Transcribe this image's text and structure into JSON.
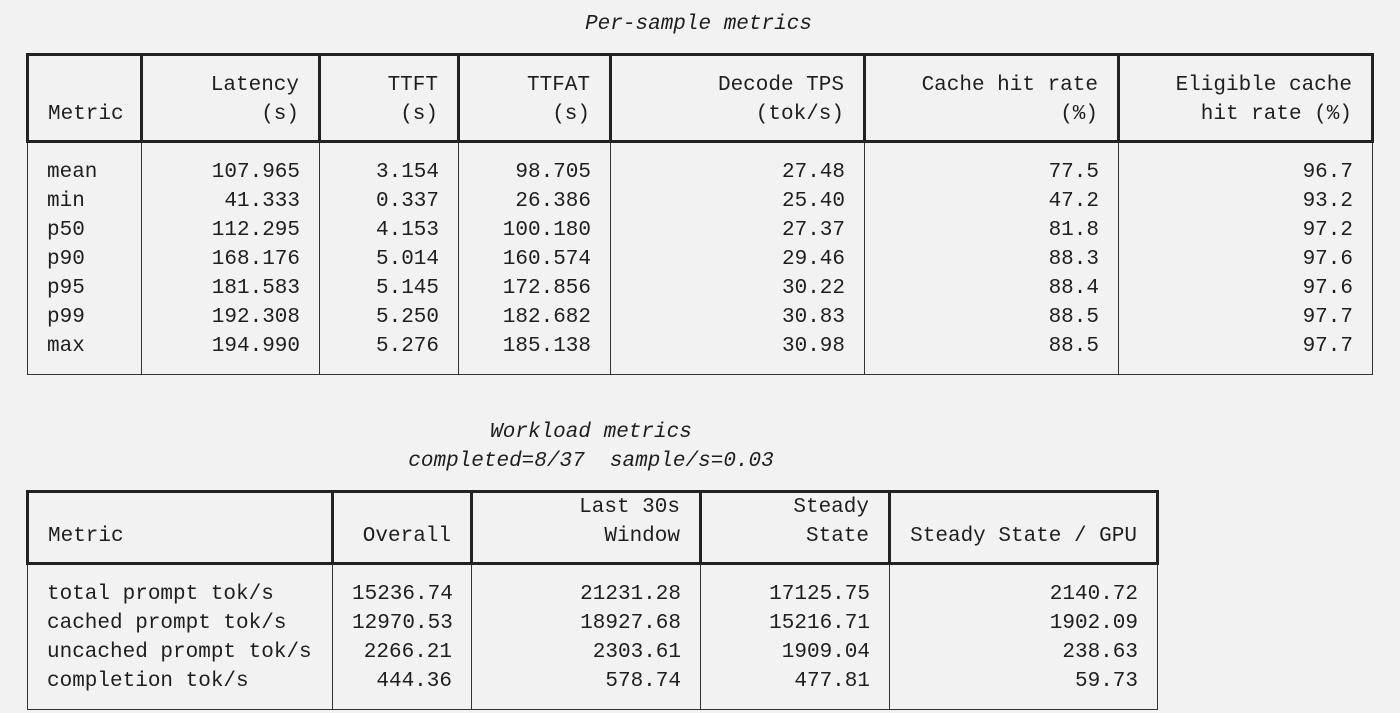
{
  "tables": [
    {
      "title": "Per-sample metrics",
      "header": [
        "Metric",
        "Latency (s)",
        "TTFT (s)",
        "TTFAT (s)",
        "Decode TPS\n(tok/s)",
        "Cache hit rate\n(%)",
        "Eligible cache\nhit rate (%)"
      ],
      "rows": [
        [
          "mean",
          "107.965",
          "3.154",
          "98.705",
          "27.48",
          "77.5",
          "96.7"
        ],
        [
          "min",
          "41.333",
          "0.337",
          "26.386",
          "25.40",
          "47.2",
          "93.2"
        ],
        [
          "p50",
          "112.295",
          "4.153",
          "100.180",
          "27.37",
          "81.8",
          "97.2"
        ],
        [
          "p90",
          "168.176",
          "5.014",
          "160.574",
          "29.46",
          "88.3",
          "97.6"
        ],
        [
          "p95",
          "181.583",
          "5.145",
          "172.856",
          "30.22",
          "88.4",
          "97.6"
        ],
        [
          "p99",
          "192.308",
          "5.250",
          "182.682",
          "30.83",
          "88.5",
          "97.7"
        ],
        [
          "max",
          "194.990",
          "5.276",
          "185.138",
          "30.98",
          "88.5",
          "97.7"
        ]
      ]
    },
    {
      "title": "Workload metrics",
      "subtitle": "completed=8/37  sample/s=0.03",
      "header": [
        "Metric",
        "Overall",
        "Last 30s Window",
        "Steady State",
        "Steady State / GPU"
      ],
      "rows": [
        [
          "total prompt tok/s",
          "15236.74",
          "21231.28",
          "17125.75",
          "2140.72"
        ],
        [
          "cached prompt tok/s",
          "12970.53",
          "18927.68",
          "15216.71",
          "1902.09"
        ],
        [
          "uncached prompt tok/s",
          "2266.21",
          "2303.61",
          "1909.04",
          "238.63"
        ],
        [
          "completion tok/s",
          "444.36",
          "578.74",
          "477.81",
          "59.73"
        ]
      ]
    }
  ]
}
